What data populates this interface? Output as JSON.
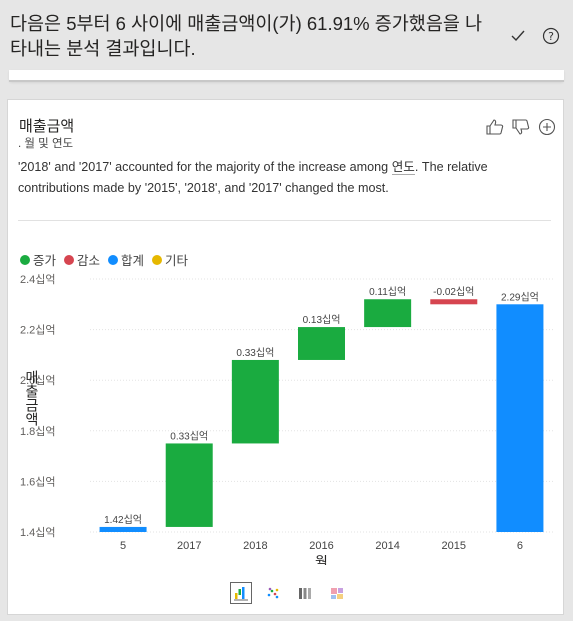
{
  "header": {
    "question": "다음은 5부터 6 사이에 매출금액이(가) 61.91% 증가했음을 나타내는 분석 결과입니다.",
    "check_icon": "check-icon",
    "help_icon": "help-circle-icon"
  },
  "card": {
    "title": "매출금액",
    "subtitle": ". 월 및 연도",
    "narrative_before": "'2018' and '2017' accounted for the majority of the increase among ",
    "narrative_field": "연도",
    "narrative_after": ". The relative contributions made by '2015', '2018', and '2017' changed the most.",
    "actions": [
      "thumbs-up-icon",
      "thumbs-down-icon",
      "plus-circle-icon"
    ]
  },
  "legend": [
    {
      "label": "증가",
      "color": "#1aab40"
    },
    {
      "label": "감소",
      "color": "#d64550"
    },
    {
      "label": "합계",
      "color": "#118dff"
    },
    {
      "label": "기타",
      "color": "#e6b800"
    }
  ],
  "chart_data": {
    "type": "bar",
    "subtype": "waterfall",
    "xlabel": "월",
    "ylabel": "매출금액",
    "categories": [
      "5",
      "2017",
      "2018",
      "2016",
      "2014",
      "2015",
      "6"
    ],
    "steps": [
      {
        "category": "5",
        "kind": "total",
        "start": 1.4,
        "end": 1.42,
        "label": "1.42십억"
      },
      {
        "category": "2017",
        "kind": "increase",
        "start": 1.42,
        "end": 1.75,
        "label": "0.33십억"
      },
      {
        "category": "2018",
        "kind": "increase",
        "start": 1.75,
        "end": 2.08,
        "label": "0.33십억"
      },
      {
        "category": "2016",
        "kind": "increase",
        "start": 2.08,
        "end": 2.21,
        "label": "0.13십억"
      },
      {
        "category": "2014",
        "kind": "increase",
        "start": 2.21,
        "end": 2.32,
        "label": "0.11십억"
      },
      {
        "category": "2015",
        "kind": "decrease",
        "start": 2.32,
        "end": 2.3,
        "label": "-0.02십억"
      },
      {
        "category": "6",
        "kind": "total",
        "start": 1.4,
        "end": 2.3,
        "label": "2.29십억"
      }
    ],
    "ylim": [
      1.4,
      2.4
    ],
    "yticks": [
      1.4,
      1.6,
      1.8,
      2.0,
      2.2,
      2.4
    ],
    "ytick_labels": [
      "1.4십억",
      "1.6십억",
      "1.8십억",
      "2.0십억",
      "2.2십억",
      "2.4십억"
    ],
    "grid": true,
    "legend_position": "top-left"
  },
  "viz_switch": [
    "waterfall-chart-icon",
    "scatter-chart-icon",
    "column-chart-icon",
    "treemap-icon"
  ]
}
